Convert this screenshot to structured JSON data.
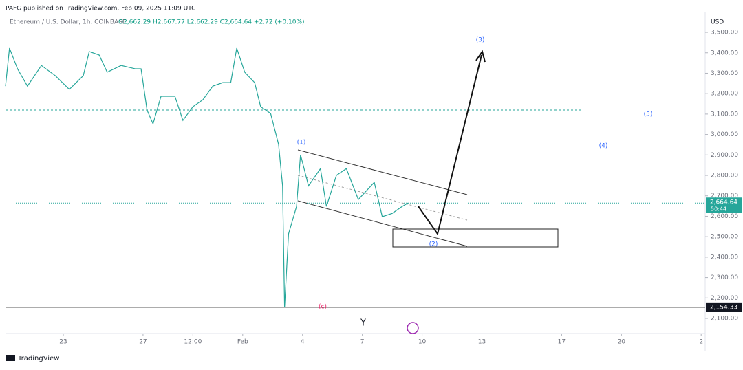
{
  "header": {
    "published": "PAFG published on TradingView.com, Feb 09, 2025 11:09 UTC"
  },
  "footer": {
    "brand": "TradingView"
  },
  "chart_data": {
    "type": "line",
    "title": "Ethereum / U.S. Dollar, 1h, COINBASE",
    "subtitle": "O2,662.29 H2,667.77 L2,662.29 C2,664.64 +2.72 (+0.10%)",
    "y_axis_label": "USD",
    "color": "#26a69a",
    "x": [
      -2.9,
      -2.7,
      -2.3,
      -1.8,
      -1.1,
      -0.4,
      0.3,
      1.0,
      1.3,
      1.8,
      2.2,
      2.9,
      3.6,
      3.9,
      4.2,
      4.5,
      4.9,
      5.6,
      6.0,
      6.5,
      7.0,
      7.5,
      8.0,
      8.4,
      8.7,
      9.1,
      9.6,
      9.9,
      10.4,
      10.8,
      11.0,
      11.1,
      11.3,
      11.7,
      11.9,
      12.3,
      12.9,
      13.2,
      13.7,
      14.2,
      14.8,
      15.6,
      16.0,
      16.5,
      17.0,
      17.3
    ],
    "values": [
      3237,
      3423,
      3322,
      3237,
      3338,
      3288,
      3221,
      3288,
      3406,
      3389,
      3305,
      3338,
      3322,
      3322,
      3120,
      3052,
      3187,
      3187,
      3069,
      3136,
      3170,
      3237,
      3254,
      3254,
      3423,
      3305,
      3254,
      3136,
      3103,
      2951,
      2749,
      2154,
      2514,
      2648,
      2901,
      2749,
      2833,
      2648,
      2800,
      2833,
      2682,
      2766,
      2598,
      2614,
      2648,
      2665
    ],
    "xlim": [
      -2.9,
      32.2
    ],
    "xticks": [
      {
        "value": 0,
        "label": "23"
      },
      {
        "value": 4,
        "label": "27"
      },
      {
        "value": 6.5,
        "label": "12:00"
      },
      {
        "value": 9,
        "label": "Feb"
      },
      {
        "value": 12,
        "label": "4"
      },
      {
        "value": 15,
        "label": "7"
      },
      {
        "value": 18,
        "label": "10"
      },
      {
        "value": 21,
        "label": "13"
      },
      {
        "value": 25,
        "label": "17"
      },
      {
        "value": 28,
        "label": "20"
      },
      {
        "value": 32,
        "label": "2"
      }
    ],
    "ylim": [
      2026,
      3591
    ],
    "yticks": [
      {
        "value": 2100,
        "label": "2,100.00"
      },
      {
        "value": 2200,
        "label": "2,200.00"
      },
      {
        "value": 2300,
        "label": "2,300.00"
      },
      {
        "value": 2400,
        "label": "2,400.00"
      },
      {
        "value": 2500,
        "label": "2,500.00"
      },
      {
        "value": 2600,
        "label": "2,600.00"
      },
      {
        "value": 2700,
        "label": "2,700.00"
      },
      {
        "value": 2800,
        "label": "2,800.00"
      },
      {
        "value": 2900,
        "label": "2,900.00"
      },
      {
        "value": 3000,
        "label": "3,000.00"
      },
      {
        "value": 3100,
        "label": "3,100.00"
      },
      {
        "value": 3200,
        "label": "3,200.00"
      },
      {
        "value": 3300,
        "label": "3,300.00"
      },
      {
        "value": 3400,
        "label": "3,400.00"
      },
      {
        "value": 3500,
        "label": "3,500.00"
      }
    ],
    "last_price": {
      "value": 2664.64,
      "label": "2,664.64"
    },
    "countdown": "50:44",
    "support": {
      "value": 2154.33,
      "label": "2,154.33"
    },
    "annotations": [
      "(1)",
      "(2)",
      "(3)",
      "(4)",
      "(5)",
      "(c)",
      "Y"
    ]
  }
}
